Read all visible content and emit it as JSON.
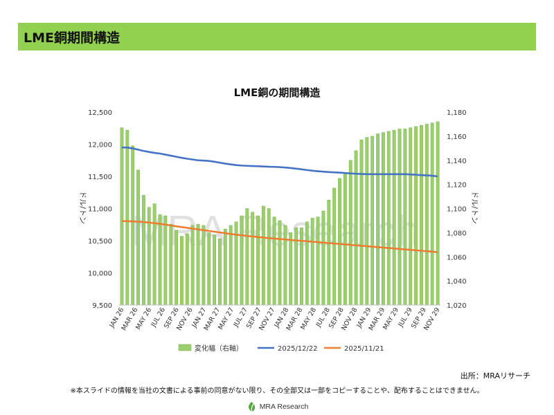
{
  "header": {
    "title": "LME銅期間構造"
  },
  "chart_data": {
    "type": "bar",
    "title": "LME銅の期間構造",
    "ylabel": "ドル/トン",
    "y2label": "ドル/トン",
    "ylim": [
      9500,
      12500
    ],
    "y2lim": [
      1020,
      1180
    ],
    "yticks": [
      "9,500",
      "10,000",
      "10,500",
      "11,000",
      "11,500",
      "12,000",
      "12,500"
    ],
    "y2ticks": [
      "1,020",
      "1,040",
      "1,060",
      "1,080",
      "1,100",
      "1,120",
      "1,140",
      "1,160",
      "1,180"
    ],
    "x_tick_labels": [
      "JAN 26",
      "MAR 26",
      "MAY 26",
      "JUL 26",
      "SEP 26",
      "NOV 26",
      "JAN 27",
      "MAR 27",
      "MAY 27",
      "JUL 27",
      "SEP 27",
      "NOV 27",
      "JAN 28",
      "MAR 28",
      "MAY 28",
      "JUL 28",
      "SEP 28",
      "NOV 28",
      "JAN 29",
      "MAR 29",
      "MAY 29",
      "JUL 29",
      "SEP 29",
      "NOV 29"
    ],
    "bar_series": {
      "name": "変化幅（右軸）",
      "axis": "right",
      "color": "#9bcf6e",
      "values": [
        1167,
        1165,
        1152,
        1132,
        1111,
        1101,
        1104,
        1095,
        1094,
        1087,
        1082,
        1077,
        1079,
        1086,
        1087,
        1086,
        1080,
        1078,
        1075,
        1083,
        1086,
        1089,
        1094,
        1100,
        1097,
        1094,
        1102,
        1100,
        1093,
        1090,
        1086,
        1080,
        1084,
        1084,
        1089,
        1092,
        1093,
        1098,
        1107,
        1117,
        1125,
        1130,
        1140,
        1148,
        1157,
        1159,
        1160,
        1162,
        1163,
        1164,
        1165,
        1166,
        1166,
        1167,
        1168,
        1169,
        1170,
        1171,
        1172
      ]
    },
    "line_series": [
      {
        "name": "2025/12/22",
        "color": "#4472c4",
        "values": [
          11950,
          11948,
          11935,
          11915,
          11895,
          11880,
          11865,
          11855,
          11838,
          11822,
          11805,
          11788,
          11774,
          11762,
          11750,
          11745,
          11740,
          11728,
          11712,
          11698,
          11686,
          11675,
          11668,
          11664,
          11661,
          11658,
          11654,
          11650,
          11648,
          11644,
          11638,
          11630,
          11620,
          11610,
          11598,
          11588,
          11580,
          11573,
          11567,
          11562,
          11558,
          11552,
          11546,
          11541,
          11537,
          11534,
          11534,
          11534,
          11534,
          11534,
          11534,
          11534,
          11534,
          11530,
          11525,
          11520,
          11515,
          11510,
          11500
        ]
      },
      {
        "name": "2025/11/21",
        "color": "#ed7d31",
        "values": [
          10805,
          10803,
          10800,
          10795,
          10790,
          10782,
          10772,
          10762,
          10750,
          10738,
          10724,
          10712,
          10700,
          10688,
          10676,
          10664,
          10652,
          10640,
          10628,
          10616,
          10604,
          10594,
          10584,
          10575,
          10566,
          10557,
          10549,
          10541,
          10533,
          10526,
          10519,
          10512,
          10505,
          10498,
          10491,
          10484,
          10477,
          10470,
          10463,
          10456,
          10449,
          10442,
          10435,
          10428,
          10421,
          10414,
          10407,
          10400,
          10393,
          10386,
          10379,
          10372,
          10365,
          10358,
          10351,
          10344,
          10337,
          10330,
          10320
        ]
      }
    ],
    "watermark": "MRA Research",
    "legend_position": "bottom"
  },
  "source_note": "出所：MRAリサーチ",
  "disclaimer": "※本スライドの情報を当社の文書による事前の同意がない限り、その全部又は一部をコピーすることや、配布することはできません。",
  "footer": {
    "logo_text": "MRA Research",
    "logo_color": "#5ba84a"
  }
}
